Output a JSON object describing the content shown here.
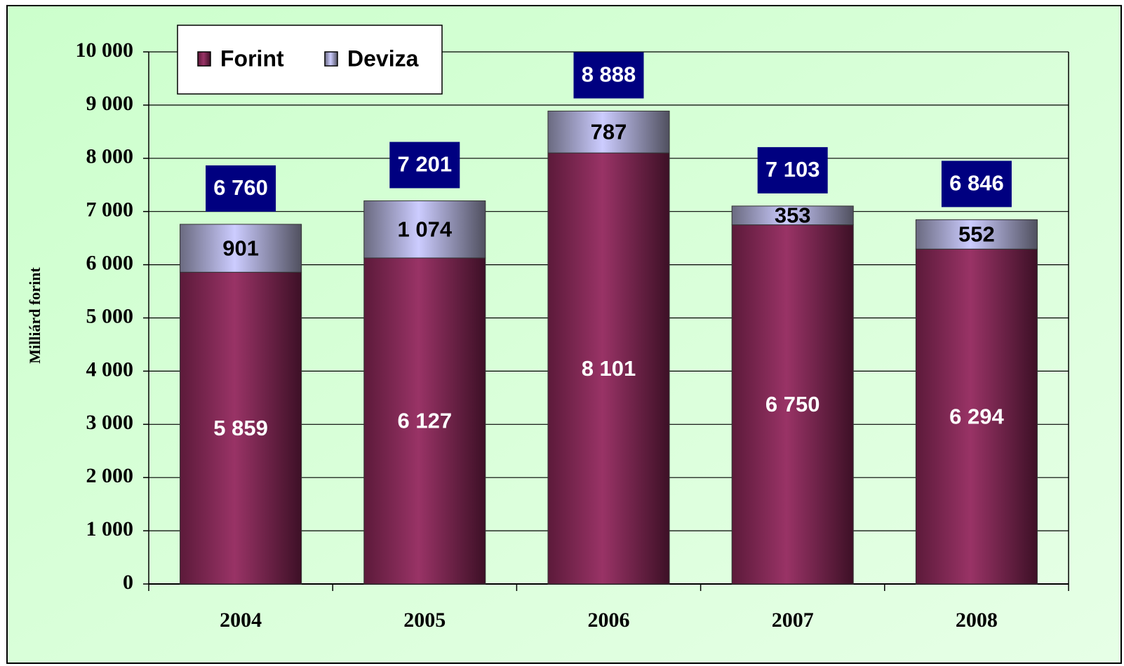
{
  "chart_data": {
    "type": "stacked_bar",
    "y_label": "Milliárd forint",
    "categories": [
      "2004",
      "2005",
      "2006",
      "2007",
      "2008"
    ],
    "series": [
      {
        "name": "Forint",
        "color": "#8e2d5a",
        "values": [
          5859,
          6127,
          8101,
          6750,
          6294
        ],
        "value_labels": [
          "5 859",
          "6 127",
          "8 101",
          "6 750",
          "6 294"
        ]
      },
      {
        "name": "Deviza",
        "color": "#c8c8f8",
        "values": [
          901,
          1074,
          787,
          353,
          552
        ],
        "value_labels": [
          "901",
          "1 074",
          "787",
          "353",
          "552"
        ]
      }
    ],
    "totals": [
      6760,
      7201,
      8888,
      7103,
      6846
    ],
    "total_labels": [
      "6 760",
      "7 201",
      "8 888",
      "7 103",
      "6 846"
    ],
    "ylim": [
      0,
      10000
    ],
    "yticks": [
      0,
      {
        "value": 1000,
        "label": "1 000"
      },
      {
        "value": 2000,
        "label": "2 000"
      },
      {
        "value": 3000,
        "label": "3 000"
      },
      {
        "value": 4000,
        "label": "4 000"
      },
      {
        "value": 5000,
        "label": "5 000"
      },
      {
        "value": 6000,
        "label": "6 000"
      },
      {
        "value": 7000,
        "label": "7 000"
      },
      {
        "value": 8000,
        "label": "8 000"
      },
      {
        "value": 9000,
        "label": "9 000"
      },
      {
        "value": 10000,
        "label": "10 000"
      }
    ],
    "grid": true,
    "legend": "top-left"
  }
}
